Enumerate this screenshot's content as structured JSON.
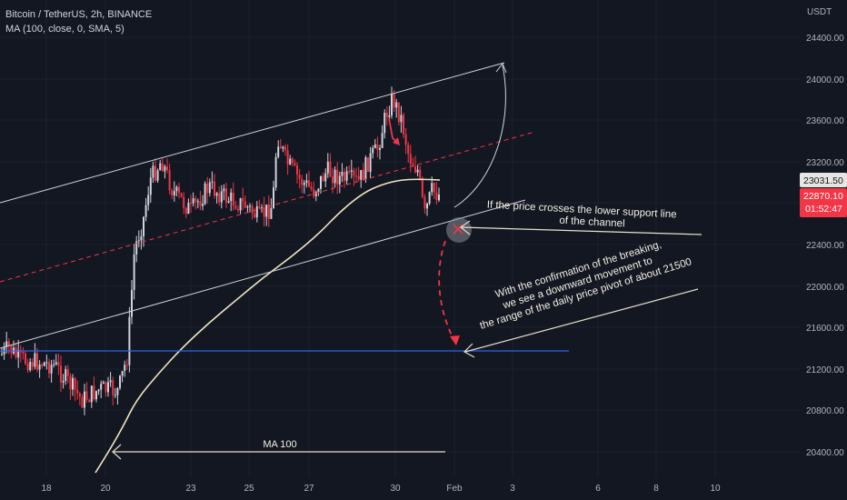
{
  "header": {
    "symbol_line": "Bitcoin / TetherUS, 2h, BINANCE",
    "indicator_line": "MA (100, close, 0, SMA, 5)"
  },
  "price_axis": {
    "currency": "USDT",
    "ticks": [
      "24400.00",
      "24000.00",
      "23600.00",
      "23200.00",
      "22800.00",
      "22400.00",
      "22000.00",
      "21600.00",
      "21200.00",
      "20800.00",
      "20400.00"
    ],
    "ma_value_badge": "23031.50",
    "last_price_badge": "22870.10",
    "countdown_badge": "01:52:47"
  },
  "time_axis": {
    "ticks": [
      "18",
      "20",
      "23",
      "25",
      "27",
      "30",
      "Feb",
      "3",
      "6",
      "8",
      "10"
    ]
  },
  "annotations": {
    "support_break": "If the price crosses the lower support line of the channel",
    "support_break_line1": "If the price crosses the lower support line",
    "support_break_line2": "of the channel",
    "breakdown_line1": "With the confirmation of the breaking,",
    "breakdown_line2": "we see a downward movement to",
    "breakdown_line3": "the range of the daily price pivot of about 21500",
    "ma_label": "MA 100"
  },
  "colors": {
    "background": "#131722",
    "up_candle": "#d1d4dc",
    "down_candle": "#f23645",
    "ma_line": "#f0e6c0",
    "pivot_line": "#2962ff",
    "channel": "#d1d4dc",
    "midline": "#f23645",
    "ma_badge": "#e8e6e0",
    "price_badge": "#f23645"
  }
}
